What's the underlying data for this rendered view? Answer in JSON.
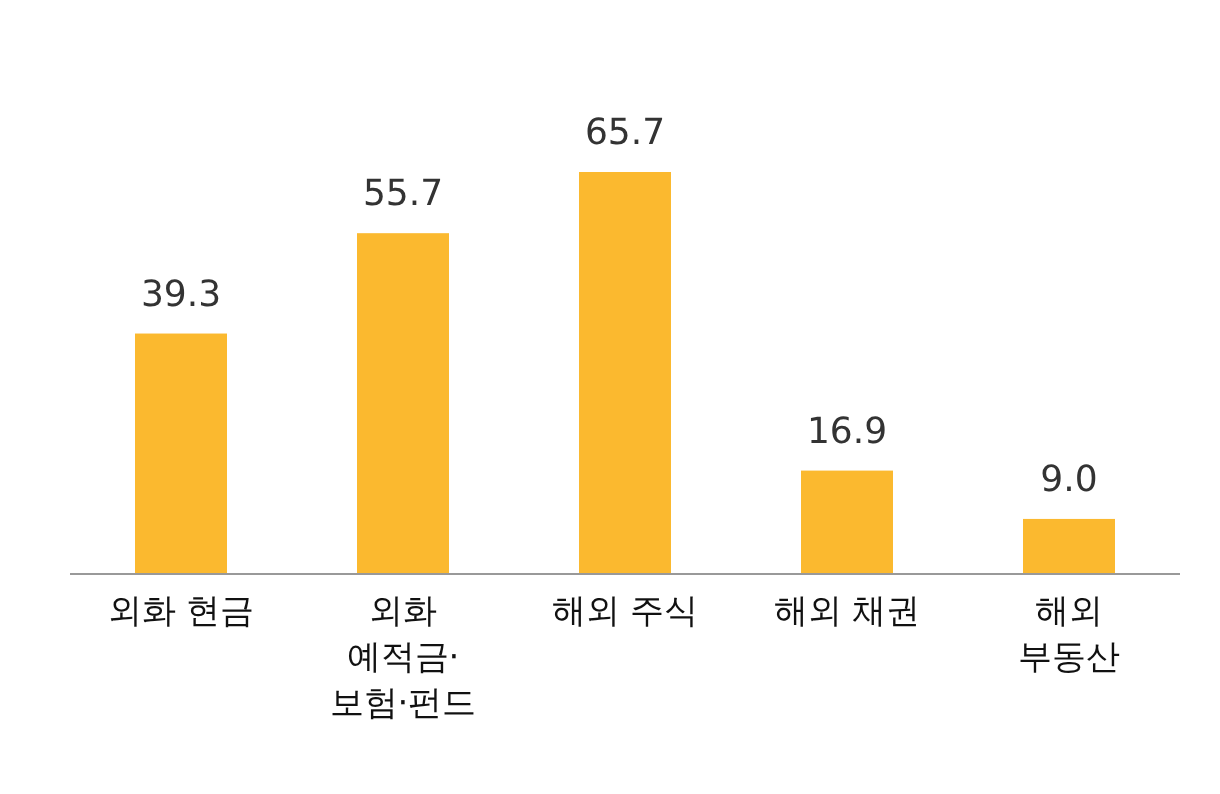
{
  "chart_data": {
    "type": "bar",
    "categories": [
      "외화 현금",
      "외화 예적금·보험·펀드",
      "해외 주식",
      "해외 채권",
      "해외 부동산"
    ],
    "values": [
      39.3,
      55.7,
      65.7,
      16.9,
      9.0
    ],
    "value_labels": [
      "39.3",
      "55.7",
      "65.7",
      "16.9",
      "9.0"
    ],
    "color": "#fbb92f"
  }
}
